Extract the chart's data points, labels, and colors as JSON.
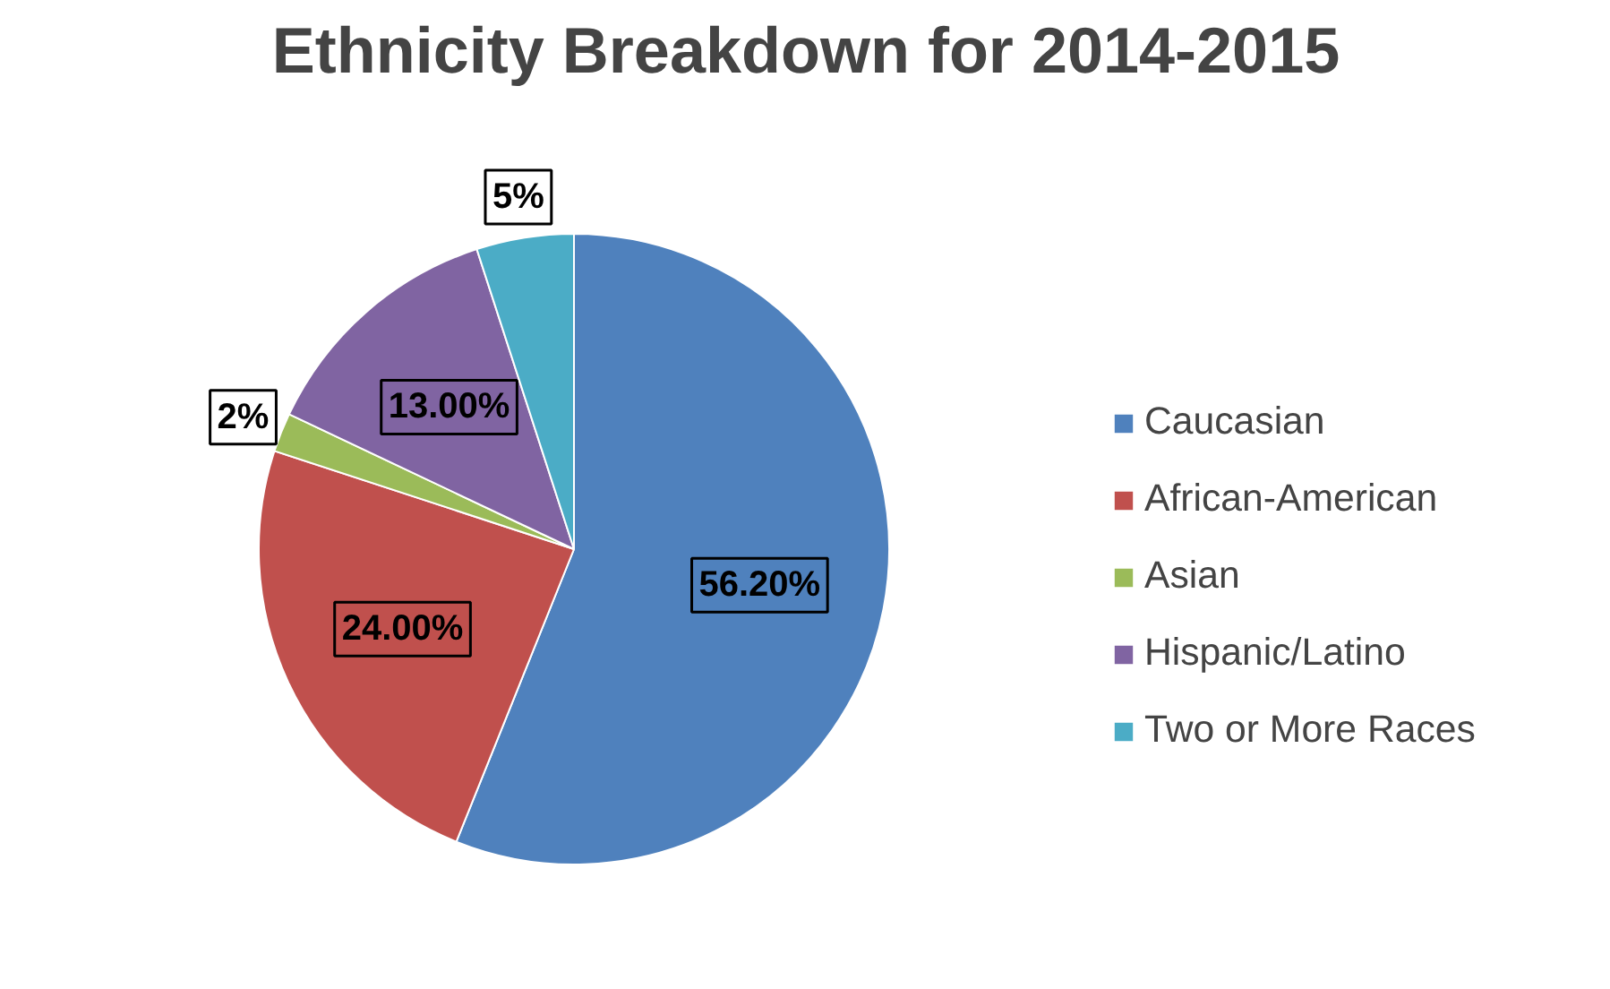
{
  "chart_data": {
    "type": "pie",
    "title": "Ethnicity Breakdown for 2014-2015",
    "categories": [
      "Caucasian",
      "African-American",
      "Asian",
      "Hispanic/Latino",
      "Two or More Races"
    ],
    "values": [
      56.2,
      24,
      2,
      13,
      5
    ],
    "value_labels": [
      "56.20%",
      "24.00%",
      "2%",
      "13.00%",
      "5%"
    ],
    "colors": [
      "#4f81bd",
      "#c0504d",
      "#9bbb59",
      "#8064a2",
      "#4bacc6"
    ],
    "legend": "right"
  }
}
